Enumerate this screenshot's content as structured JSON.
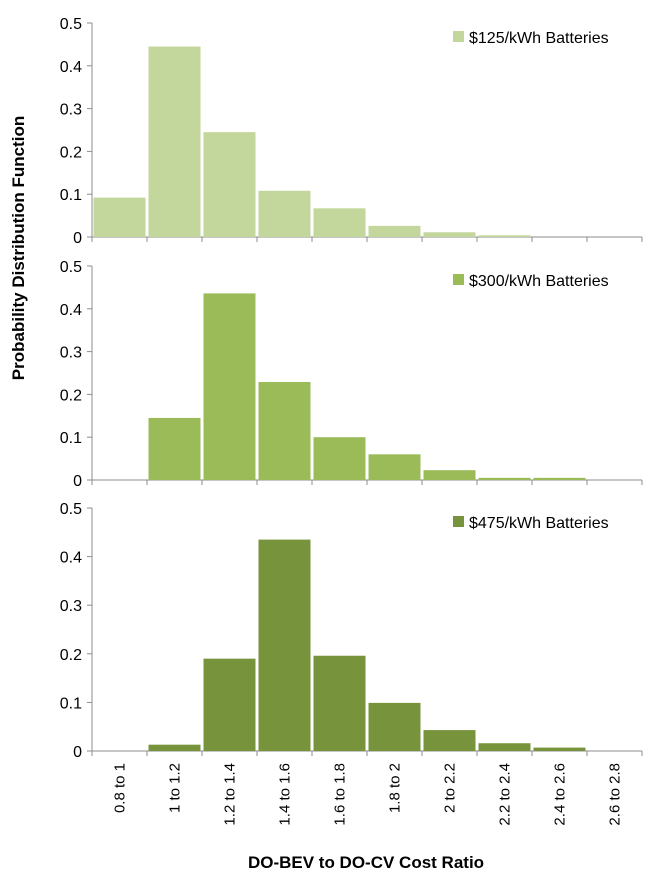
{
  "chart_data": {
    "type": "bar",
    "ylabel": "Probability Distribution Function",
    "xlabel": "DO-BEV to DO-CV Cost Ratio",
    "categories": [
      "0.8 to 1",
      "1 to 1.2",
      "1.2 to 1.4",
      "1.4 to 1.6",
      "1.6 to 1.8",
      "1.8 to 2",
      "2 to 2.2",
      "2.2 to 2.4",
      "2.4 to 2.6",
      "2.6 to 2.8"
    ],
    "grid": false,
    "legend_position": "top-right",
    "panels": [
      {
        "series_name": "$125/kWh Batteries",
        "color": "#c3d69b",
        "ylim": [
          0,
          0.5
        ],
        "yticks": [
          "0",
          "0.1",
          "0.2",
          "0.3",
          "0.4",
          "0.5"
        ],
        "values": [
          0.092,
          0.445,
          0.245,
          0.108,
          0.067,
          0.026,
          0.011,
          0.004,
          0,
          0
        ]
      },
      {
        "series_name": "$300/kWh Batteries",
        "color": "#9bbb59",
        "ylim": [
          0,
          0.5
        ],
        "yticks": [
          "0",
          "0.1",
          "0.2",
          "0.3",
          "0.4",
          "0.5"
        ],
        "values": [
          0,
          0.145,
          0.436,
          0.229,
          0.1,
          0.06,
          0.023,
          0.005,
          0.005,
          0
        ]
      },
      {
        "series_name": "$475/kWh Batteries",
        "color": "#77933c",
        "ylim": [
          0,
          0.5
        ],
        "yticks": [
          "0",
          "0.1",
          "0.2",
          "0.3",
          "0.4",
          "0.5"
        ],
        "values": [
          0,
          0.013,
          0.19,
          0.435,
          0.196,
          0.099,
          0.043,
          0.016,
          0.007,
          0
        ]
      }
    ]
  }
}
